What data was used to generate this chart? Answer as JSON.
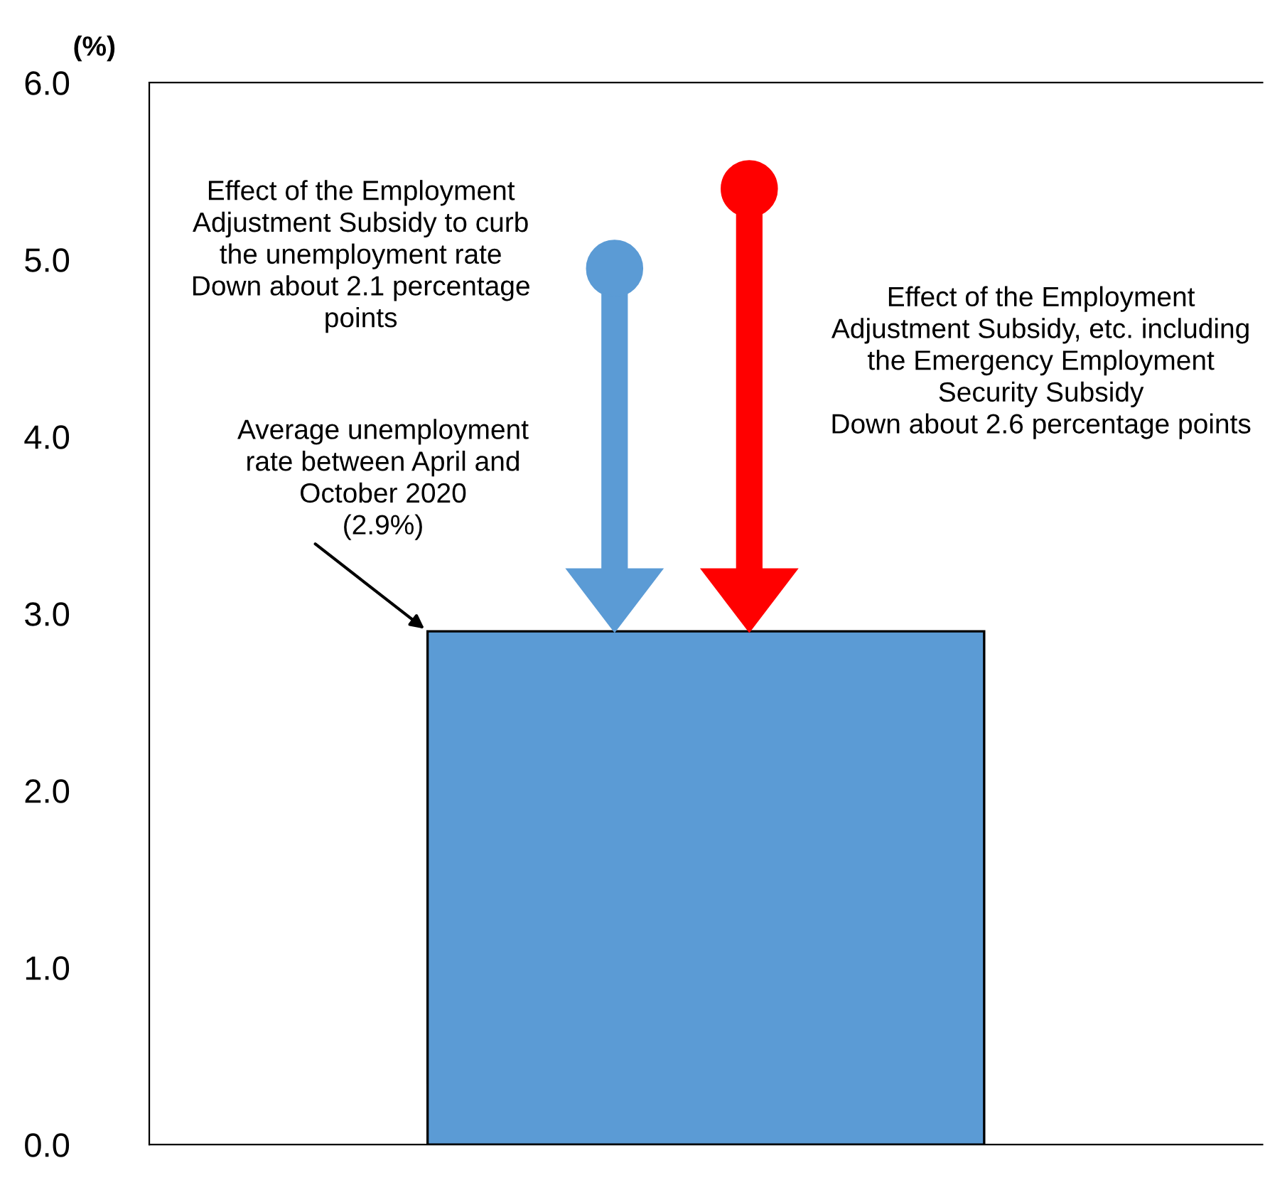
{
  "chart_data": {
    "type": "bar",
    "ylabel": "(%)",
    "categories": [
      null
    ],
    "values": [
      2.9
    ],
    "color": "#5b9bd5",
    "ylim": [
      0,
      6
    ],
    "yticks": [
      {
        "value": 0,
        "label": "0.0"
      },
      {
        "value": 1,
        "label": "1.0"
      },
      {
        "value": 2,
        "label": "2.0"
      },
      {
        "value": 3,
        "label": "3.0"
      },
      {
        "value": 4,
        "label": "4.0"
      },
      {
        "value": 5,
        "label": "5.0"
      },
      {
        "value": 6,
        "label": "6.0"
      }
    ],
    "grid": false,
    "annotations": [
      "Effect of the Employment\nAdjustment Subsidy to curb\nthe unemployment rate\nDown about 2.1 percentage\npoints",
      "Effect of the Employment\nAdjustment Subsidy, etc. including\nthe Emergency Employment\nSecurity Subsidy\nDown about 2.6 percentage points",
      "Average unemployment\nrate between April and\nOctober 2020\n(2.9%)"
    ]
  }
}
